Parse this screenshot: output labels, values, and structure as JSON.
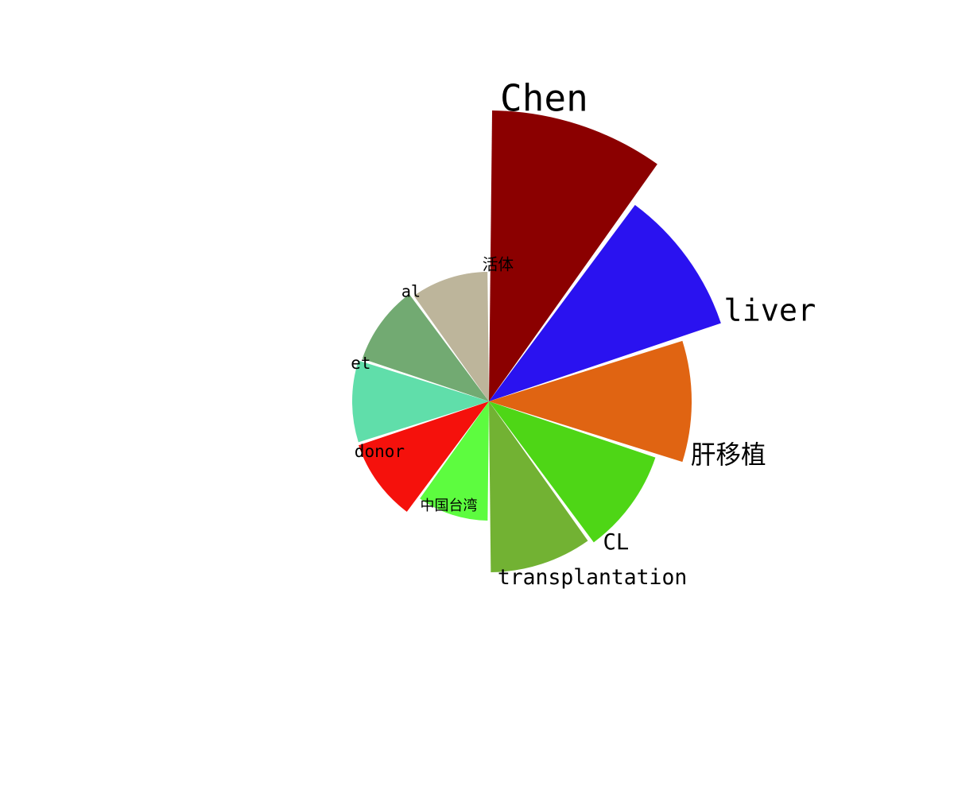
{
  "chart_data": {
    "type": "rose",
    "title": "",
    "slices": [
      {
        "label": "Chen",
        "value": 366,
        "color": "#8b0000"
      },
      {
        "label": "liver",
        "value": 308,
        "color": "#2a12f0"
      },
      {
        "label": "肝移植",
        "value": 255,
        "color": "#e06412"
      },
      {
        "label": "CL",
        "value": 221,
        "color": "#4ed616"
      },
      {
        "label": "transplantation",
        "value": 215,
        "color": "#72b233"
      },
      {
        "label": "中国台湾",
        "value": 150,
        "color": "#5dfc3f"
      },
      {
        "label": "donor",
        "value": 173,
        "color": "#f5110c"
      },
      {
        "label": "et",
        "value": 172,
        "color": "#60deaa"
      },
      {
        "label": "al",
        "value": 168,
        "color": "#72aa72"
      },
      {
        "label": "活体",
        "value": 163,
        "color": "#bdb59b"
      }
    ]
  }
}
